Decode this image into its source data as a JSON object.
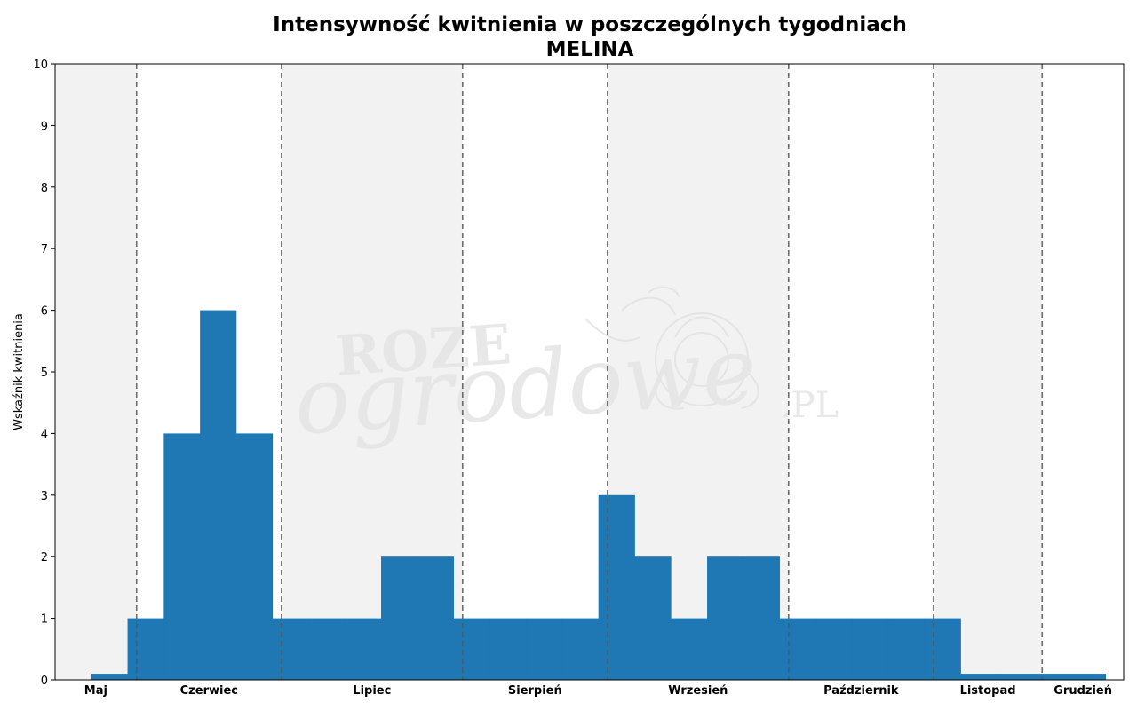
{
  "chart_data": {
    "type": "bar",
    "title": "Intensywność kwitnienia w poszczególnych tygodniach",
    "subtitle": "MELINA",
    "xlabel": "",
    "ylabel": "Wskaźnik kwitnienia",
    "ylim": [
      0,
      10
    ],
    "yticks": [
      "0",
      "1",
      "2",
      "3",
      "4",
      "5",
      "6",
      "7",
      "8",
      "9",
      "10"
    ],
    "grid": false,
    "months": [
      {
        "name": "Maj",
        "weeks": 2.25,
        "shaded": true
      },
      {
        "name": "Czerwiec",
        "weeks": 4,
        "shaded": false
      },
      {
        "name": "Lipiec",
        "weeks": 5,
        "shaded": true
      },
      {
        "name": "Sierpień",
        "weeks": 4,
        "shaded": false
      },
      {
        "name": "Wrzesień",
        "weeks": 5,
        "shaded": true
      },
      {
        "name": "Październik",
        "weeks": 4,
        "shaded": false
      },
      {
        "name": "Listopad",
        "weeks": 3,
        "shaded": true
      },
      {
        "name": "Grudzień",
        "weeks": 2.25,
        "shaded": false
      }
    ],
    "values": [
      0,
      0.1,
      1,
      4,
      6,
      4,
      1,
      1,
      1,
      2,
      2,
      1,
      1,
      1,
      1,
      3,
      2,
      1,
      2,
      2,
      1,
      1,
      1,
      1,
      1,
      0.1,
      0.1,
      0.1,
      0.1
    ],
    "bar_color": "#1f77b4",
    "shade_color": "#f2f2f2",
    "divider_color": "#555555"
  },
  "watermark": {
    "line1": "ROZE",
    "line2": "ogrodowe",
    "line3": ".PL"
  }
}
